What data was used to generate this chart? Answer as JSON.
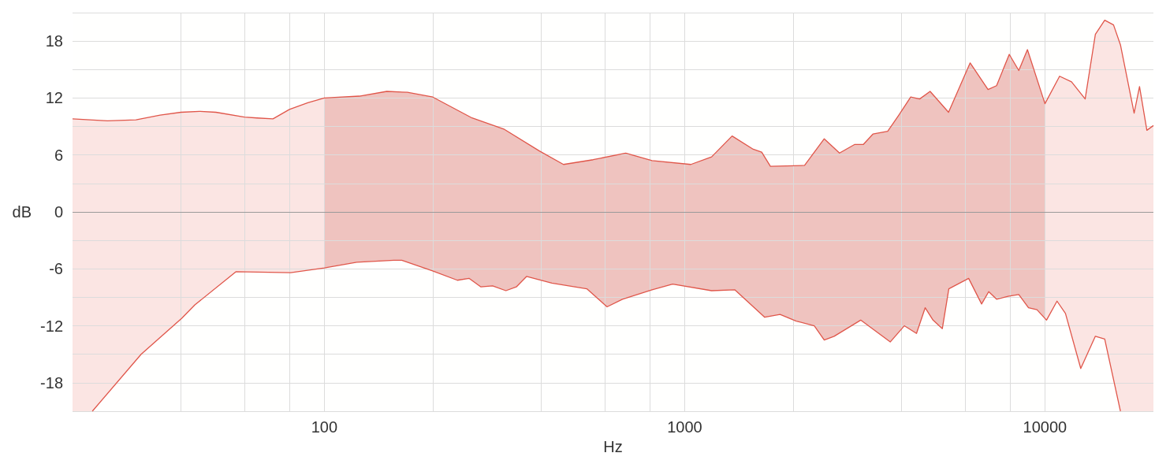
{
  "chart_data": {
    "type": "line",
    "xlabel": "Hz",
    "ylabel": "dB",
    "log": "x",
    "grid": true,
    "marker": "none",
    "xlim": [
      20,
      20000
    ],
    "ylim": [
      -21,
      21
    ],
    "xticks": [
      {
        "value": 40,
        "label": null
      },
      {
        "value": 60,
        "label": null
      },
      {
        "value": 80,
        "label": null
      },
      100,
      {
        "value": 200,
        "label": null
      },
      {
        "value": 400,
        "label": null
      },
      {
        "value": 600,
        "label": null
      },
      {
        "value": 800,
        "label": null
      },
      1000,
      {
        "value": 2000,
        "label": null
      },
      {
        "value": 4000,
        "label": null
      },
      {
        "value": 6000,
        "label": null
      },
      {
        "value": 8000,
        "label": null
      },
      10000
    ],
    "yticks": [
      {
        "value": -21,
        "label": null
      },
      -18,
      {
        "value": -15,
        "label": null
      },
      -12,
      {
        "value": -9,
        "label": null
      },
      -6,
      {
        "value": -3,
        "label": null
      },
      0,
      {
        "value": 3,
        "label": null
      },
      6,
      {
        "value": 9,
        "label": null
      },
      12,
      {
        "value": 15,
        "label": null
      },
      18,
      {
        "value": 21,
        "label": null
      }
    ],
    "series": [
      {
        "color": "#e0564a",
        "x": [
          20,
          25,
          30,
          35,
          40,
          45,
          50,
          60,
          65,
          72,
          80,
          90,
          100,
          125,
          149,
          170,
          200,
          257,
          316,
          396,
          461,
          557,
          686,
          812,
          1040,
          1188,
          1354,
          1550,
          1636,
          1730,
          2152,
          2440,
          2690,
          2960,
          3130,
          3330,
          3660,
          3930,
          4240,
          4490,
          4800,
          5400,
          6200,
          6950,
          7340,
          7960,
          8460,
          8940,
          10000,
          10980,
          11850,
          12930,
          13800,
          14650,
          15500,
          16200,
          17680,
          18300,
          19180,
          20000
        ],
        "values": [
          9.8,
          9.6,
          9.7,
          10.2,
          10.5,
          10.6,
          10.5,
          10.0,
          9.9,
          9.8,
          10.8,
          11.5,
          12.0,
          12.2,
          12.7,
          12.6,
          12.1,
          9.9,
          8.7,
          6.4,
          5.0,
          5.5,
          6.2,
          5.4,
          5.0,
          5.8,
          8.0,
          6.6,
          6.3,
          4.8,
          4.9,
          7.7,
          6.2,
          7.1,
          7.1,
          8.2,
          8.5,
          10.2,
          12.1,
          11.9,
          12.7,
          10.5,
          15.7,
          12.9,
          13.3,
          16.6,
          14.9,
          17.1,
          11.4,
          14.3,
          13.7,
          11.9,
          18.7,
          20.2,
          19.7,
          17.6,
          10.4,
          13.2,
          8.6,
          9.1
        ]
      },
      {
        "color": "#e0564a",
        "x": [
          22.7,
          31,
          40.2,
          43.7,
          56.8,
          80.6,
          100,
          123,
          156,
          164,
          199,
          234,
          252,
          272,
          293,
          319,
          341,
          364,
          428,
          535,
          609,
          672,
          812,
          926,
          1188,
          1377,
          1668,
          1840,
          2040,
          2290,
          2440,
          2600,
          3080,
          3720,
          4070,
          4400,
          4650,
          4890,
          5190,
          5410,
          6140,
          6670,
          6980,
          7340,
          7900,
          8460,
          9000,
          9500,
          10100,
          10800,
          11400,
          12570,
          13800,
          14650,
          16200
        ],
        "values": [
          -21,
          -15.0,
          -11.2,
          -9.8,
          -6.3,
          -6.4,
          -5.9,
          -5.3,
          -5.1,
          -5.1,
          -6.2,
          -7.2,
          -7.0,
          -7.9,
          -7.8,
          -8.3,
          -7.9,
          -6.8,
          -7.5,
          -8.1,
          -10.0,
          -9.2,
          -8.2,
          -7.6,
          -8.3,
          -8.2,
          -11.1,
          -10.8,
          -11.5,
          -12.0,
          -13.5,
          -13.1,
          -11.4,
          -13.7,
          -12.0,
          -12.8,
          -10.1,
          -11.4,
          -12.3,
          -8.1,
          -7.0,
          -9.7,
          -8.4,
          -9.2,
          -8.9,
          -8.7,
          -10.1,
          -10.3,
          -11.4,
          -9.4,
          -10.7,
          -16.5,
          -13.1,
          -13.4,
          -21
        ]
      }
    ],
    "bands": [
      {
        "axis": "x",
        "from": 20,
        "to": 20000,
        "color": "#fbe5e3"
      },
      {
        "axis": "x",
        "from": 100,
        "to": 10000,
        "color": "#efc3bf"
      }
    ],
    "ref_lines": [
      {
        "axis": "y",
        "value": 0,
        "color": "#9a9a9a"
      }
    ]
  }
}
